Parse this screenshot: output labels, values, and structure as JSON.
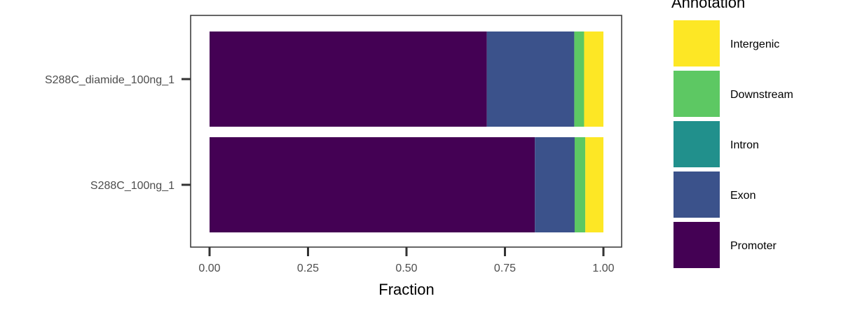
{
  "chart_data": {
    "type": "bar",
    "orientation": "horizontal",
    "stacked": true,
    "categories": [
      "S288C_diamide_100ng_1",
      "S288C_100ng_1"
    ],
    "series": [
      {
        "name": "Promoter",
        "color": "#440154",
        "values": [
          0.704,
          0.826
        ]
      },
      {
        "name": "Exon",
        "color": "#3B528B",
        "values": [
          0.222,
          0.101
        ]
      },
      {
        "name": "Intron",
        "color": "#21908C",
        "values": [
          0.0,
          0.0
        ]
      },
      {
        "name": "Downstream",
        "color": "#5DC863",
        "values": [
          0.025,
          0.027
        ]
      },
      {
        "name": "Intergenic",
        "color": "#FDE725",
        "values": [
          0.049,
          0.046
        ]
      }
    ],
    "xlabel": "Fraction",
    "ylabel": "",
    "xlim": [
      0,
      1
    ],
    "xticks": [
      "0.00",
      "0.25",
      "0.50",
      "0.75",
      "1.00"
    ],
    "grid": false,
    "legend": {
      "title": "Annotation",
      "placement": "right",
      "entries": [
        "Intergenic",
        "Downstream",
        "Intron",
        "Exon",
        "Promoter"
      ]
    }
  }
}
